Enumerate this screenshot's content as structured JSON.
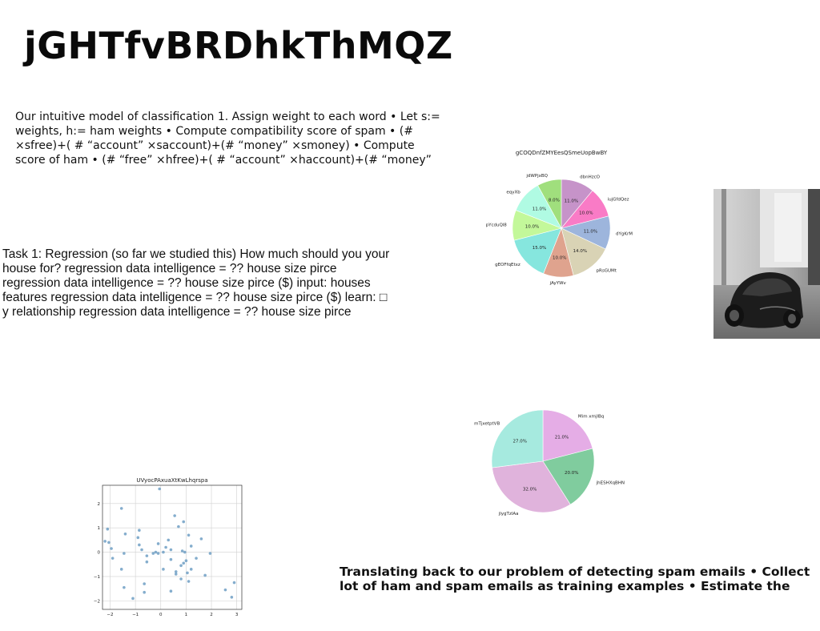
{
  "page": {
    "title": "jGHTfvBRDhkThMQZ",
    "paragraph_1": "Our intuitive model of classification 1. Assign weight to each word • Let s:= weights, h:= ham weights • Compute compatibility score of spam • (# ×sfree)+( # “account” ×saccount)+(# “money” ×smoney) • Compute score of ham • (# “free” ×hfree)+( # “account” ×haccount)+(# “money”",
    "paragraph_2": "Task 1: Regression (so far we studied this) How much should you your house for? regression data intelligence = ?? house size pirce regression data intelligence = ?? house size pirce ($) input: houses features regression data intelligence = ?? house size pirce ($) learn: □ y relationship regression data intelligence = ?? house size pirce",
    "paragraph_3": "Translating back to our problem of detecting spam emails • Collect lot of ham and spam emails as training examples • Estimate the"
  },
  "chart_data": [
    {
      "type": "pie",
      "title": "gCOQDnfZMYEesQSmeUopBwBY",
      "labels": [
        "dbnHzcO",
        "iujGfdQez",
        "dYgKrM",
        "pRsGUMt",
        "jAyYWv",
        "gEOFfqEtxz",
        "pYcduQl8",
        "eqyXb",
        "jdWPjxBQ"
      ],
      "values": [
        11.0,
        10.0,
        11.0,
        14.0,
        10.0,
        15.0,
        10.0,
        11.0,
        8.0
      ],
      "value_labels": [
        "11.0%",
        "10.0%",
        "11.0%",
        "14.0%",
        "10.0%",
        "15.0%",
        "10.0%",
        "11.0%",
        "8.0%"
      ],
      "colors": [
        "#c693c9",
        "#f97bc6",
        "#9db5dc",
        "#d9d3b5",
        "#dfa38e",
        "#86e6de",
        "#c3f89a",
        "#b0fbe3",
        "#a0df7d"
      ],
      "start": "top",
      "direction": "clockwise"
    },
    {
      "type": "pie",
      "title": "",
      "labels": [
        "Mim xmjlBq",
        "jhESHXqBHN",
        "jlygTzlAa",
        "mTjxetptVB"
      ],
      "values": [
        21.0,
        20.0,
        32.0,
        27.0
      ],
      "value_labels": [
        "21.0%",
        "20.0%",
        "32.0%",
        "27.0%"
      ],
      "colors": [
        "#e5ade6",
        "#80cc9e",
        "#e0b3dc",
        "#a6eadf"
      ],
      "start": "top",
      "direction": "clockwise"
    },
    {
      "type": "scatter",
      "title": "UVyocPAxuaXtKwLhqrspa",
      "xlim": [
        -2.3,
        3.2
      ],
      "ylim": [
        -2.35,
        2.75
      ],
      "xticks": [
        -2,
        -1,
        0,
        1,
        2,
        3
      ],
      "yticks": [
        -2,
        -1,
        0,
        1,
        2
      ],
      "grid": true,
      "color": "#6f9fc4",
      "points": [
        [
          -2.2,
          0.45
        ],
        [
          -2.1,
          0.95
        ],
        [
          -2.05,
          0.4
        ],
        [
          -1.95,
          0.15
        ],
        [
          -1.9,
          -0.25
        ],
        [
          -1.55,
          1.8
        ],
        [
          -1.55,
          -0.7
        ],
        [
          -1.4,
          0.75
        ],
        [
          -1.45,
          -1.45
        ],
        [
          -1.45,
          -0.05
        ],
        [
          -1.1,
          -1.9
        ],
        [
          -0.9,
          0.6
        ],
        [
          -0.85,
          0.9
        ],
        [
          -0.85,
          0.3
        ],
        [
          -0.75,
          0.1
        ],
        [
          -0.65,
          -1.3
        ],
        [
          -0.65,
          -1.65
        ],
        [
          -0.55,
          -0.4
        ],
        [
          -0.55,
          -0.15
        ],
        [
          -0.3,
          -0.05
        ],
        [
          -0.2,
          0.0
        ],
        [
          -0.1,
          0.35
        ],
        [
          -0.1,
          -0.05
        ],
        [
          -0.05,
          2.6
        ],
        [
          0.1,
          0.0
        ],
        [
          0.1,
          -0.7
        ],
        [
          0.2,
          0.2
        ],
        [
          0.3,
          0.5
        ],
        [
          0.4,
          0.1
        ],
        [
          0.4,
          -0.3
        ],
        [
          0.4,
          -1.6
        ],
        [
          0.55,
          1.5
        ],
        [
          0.6,
          -0.8
        ],
        [
          0.6,
          -0.9
        ],
        [
          0.7,
          1.05
        ],
        [
          0.8,
          -1.1
        ],
        [
          0.8,
          -0.55
        ],
        [
          0.85,
          0.05
        ],
        [
          0.9,
          1.25
        ],
        [
          0.9,
          -0.45
        ],
        [
          0.95,
          0.0
        ],
        [
          1.0,
          -0.35
        ],
        [
          1.05,
          -0.85
        ],
        [
          1.1,
          -1.2
        ],
        [
          1.1,
          0.7
        ],
        [
          1.2,
          0.25
        ],
        [
          1.2,
          -0.7
        ],
        [
          1.4,
          -0.25
        ],
        [
          1.6,
          0.55
        ],
        [
          1.75,
          -0.95
        ],
        [
          1.95,
          -0.05
        ],
        [
          2.55,
          -1.55
        ],
        [
          2.8,
          -1.85
        ],
        [
          2.9,
          -1.25
        ]
      ]
    }
  ],
  "photo": {
    "description_icon": "sports-car-photo-icon"
  }
}
